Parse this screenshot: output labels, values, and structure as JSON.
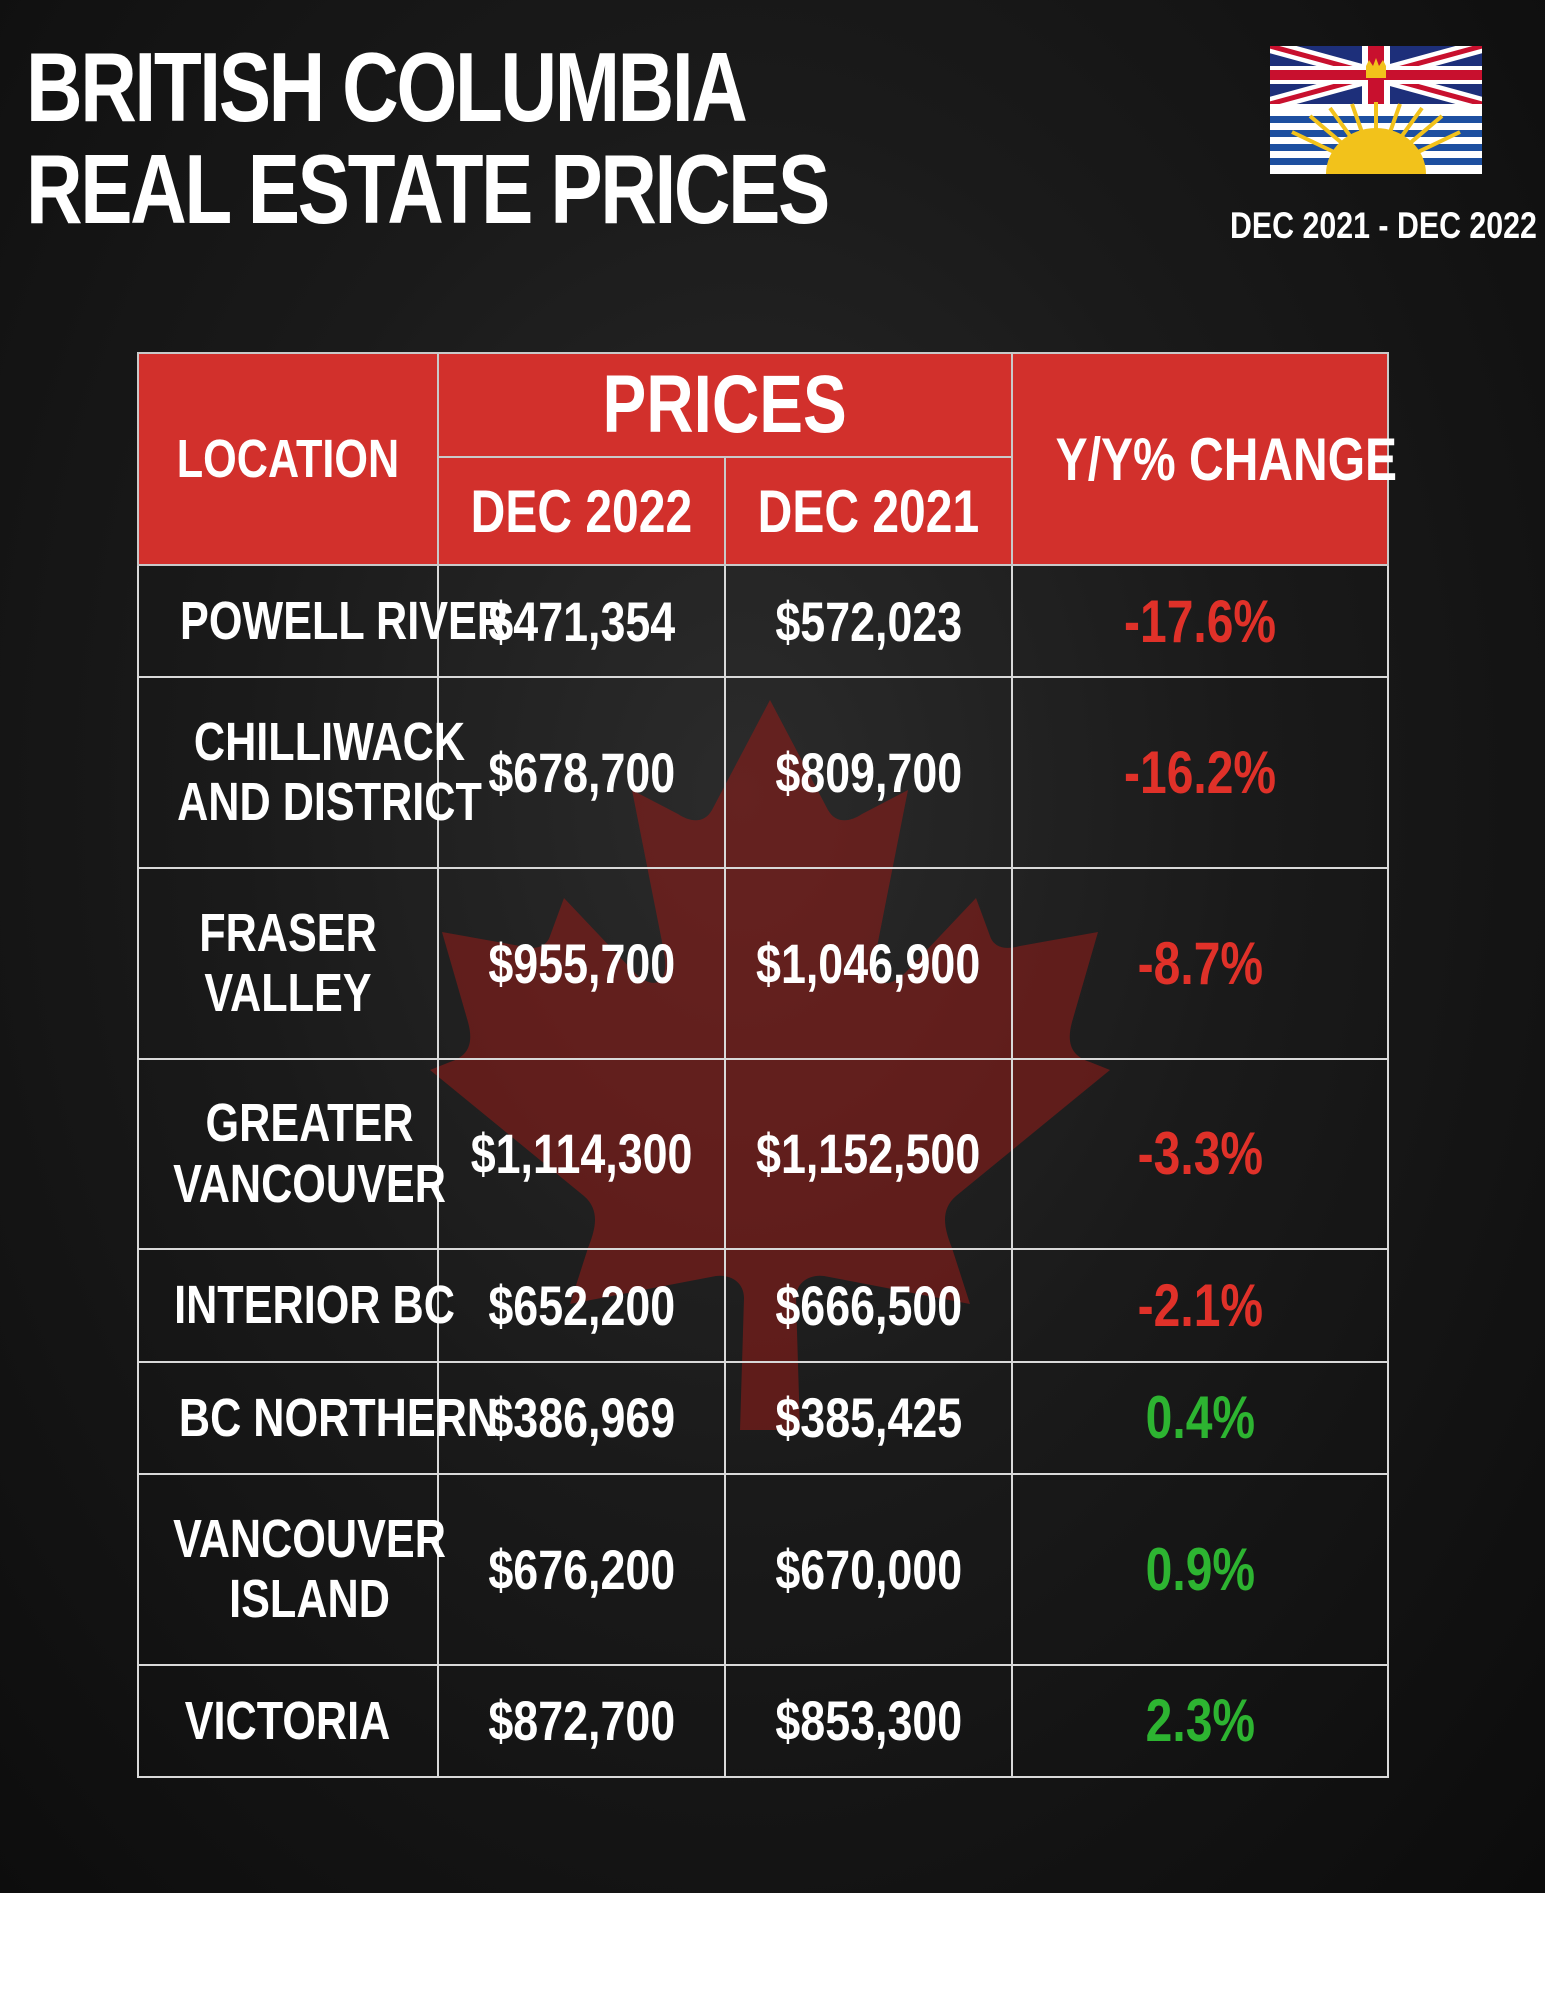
{
  "title_lines": [
    "BRITISH COLUMBIA",
    "REAL ESTATE PRICES"
  ],
  "date_range": "DEC 2021 - DEC 2022",
  "colors": {
    "header_red": "#d2302c",
    "negative": "#e03129",
    "positive": "#2db431",
    "background": "#1a1a1a"
  },
  "icons": [
    "bc-flag-icon",
    "maple-leaf-icon"
  ],
  "chart_data": {
    "type": "table",
    "headers": {
      "location": "LOCATION",
      "prices": "PRICES",
      "dec_2022": "DEC 2022",
      "dec_2021": "DEC 2021",
      "change": "Y/Y% CHANGE"
    },
    "rows": [
      {
        "location": [
          "POWELL RIVER"
        ],
        "dec_2022": "$471,354",
        "dec_2021": "$572,023",
        "change": "-17.6%",
        "direction": "neg"
      },
      {
        "location": [
          "CHILLIWACK",
          "AND DISTRICT"
        ],
        "dec_2022": "$678,700",
        "dec_2021": "$809,700",
        "change": "-16.2%",
        "direction": "neg"
      },
      {
        "location": [
          "FRASER",
          "VALLEY"
        ],
        "dec_2022": "$955,700",
        "dec_2021": "$1,046,900",
        "change": "-8.7%",
        "direction": "neg"
      },
      {
        "location": [
          "GREATER",
          "VANCOUVER"
        ],
        "dec_2022": "$1,114,300",
        "dec_2021": "$1,152,500",
        "change": "-3.3%",
        "direction": "neg"
      },
      {
        "location": [
          "INTERIOR BC"
        ],
        "dec_2022": "$652,200",
        "dec_2021": "$666,500",
        "change": "-2.1%",
        "direction": "neg"
      },
      {
        "location": [
          "BC NORTHERN"
        ],
        "dec_2022": "$386,969",
        "dec_2021": "$385,425",
        "change": "0.4%",
        "direction": "pos"
      },
      {
        "location": [
          "VANCOUVER",
          "ISLAND"
        ],
        "dec_2022": "$676,200",
        "dec_2021": "$670,000",
        "change": "0.9%",
        "direction": "pos"
      },
      {
        "location": [
          "VICTORIA"
        ],
        "dec_2022": "$872,700",
        "dec_2021": "$853,300",
        "change": "2.3%",
        "direction": "pos"
      }
    ]
  }
}
